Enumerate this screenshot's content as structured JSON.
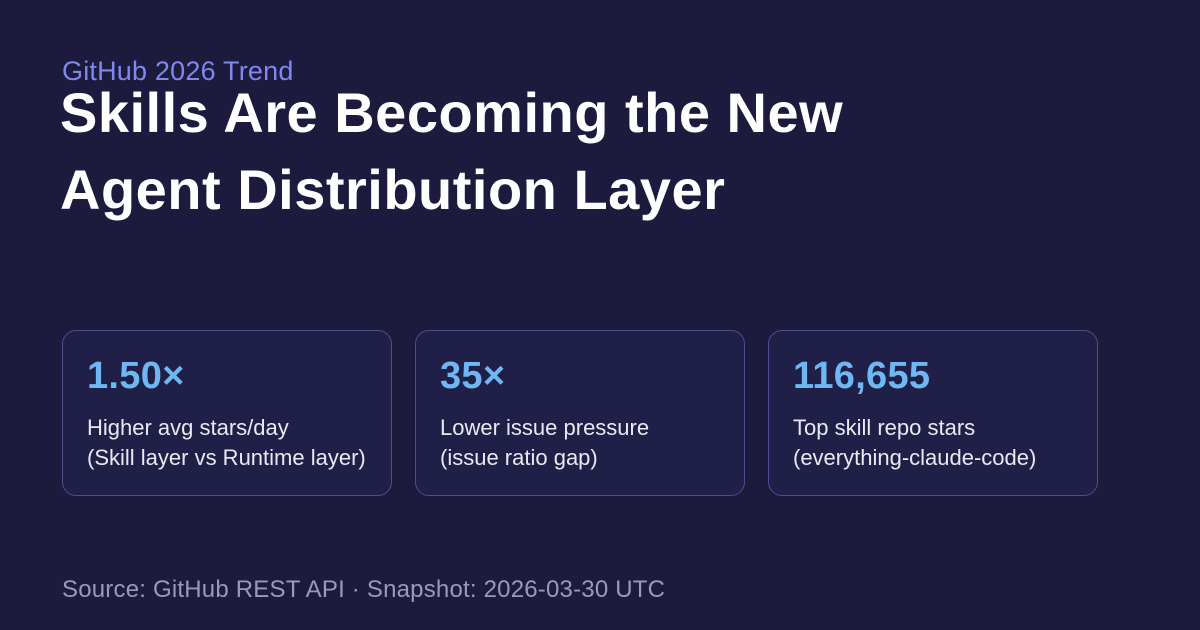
{
  "header": {
    "eyebrow": "GitHub 2026 Trend",
    "title_line1": "Skills Are Becoming the New",
    "title_line2": "Agent Distribution Layer"
  },
  "stats": [
    {
      "value": "1.50×",
      "label_line1": "Higher avg stars/day",
      "label_line2": "(Skill layer vs Runtime layer)"
    },
    {
      "value": "35×",
      "label_line1": "Lower issue pressure",
      "label_line2": "(issue ratio gap)"
    },
    {
      "value": "116,655",
      "label_line1": "Top skill repo stars",
      "label_line2": "(everything-claude-code)"
    }
  ],
  "footer": {
    "text": "Source: GitHub REST API · Snapshot: 2026-03-30 UTC"
  },
  "colors": {
    "background": "#1c1a3d",
    "eyebrow": "#8286ef",
    "title": "#ffffff",
    "stat_value": "#6eb7f2",
    "stat_label": "#e8eaf2",
    "card_border": "#4b4f8f",
    "card_background": "rgba(110, 120, 230, 0.06)",
    "footer": "#9a9ab8"
  }
}
